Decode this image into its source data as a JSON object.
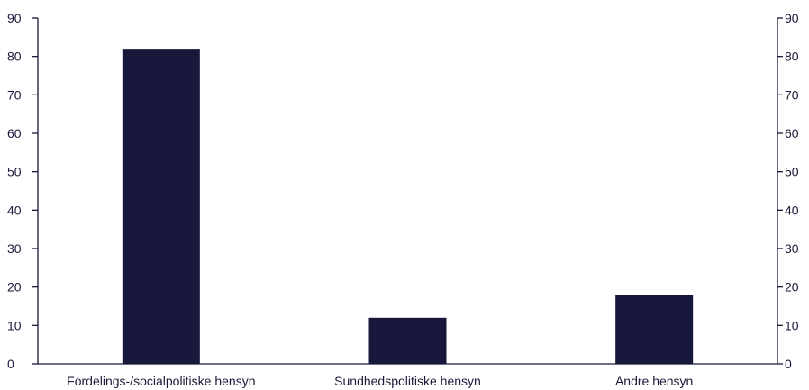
{
  "chart_data": {
    "type": "bar",
    "categories": [
      "Fordelings-/socialpolitiske hensyn",
      "Sundhedspolitiske hensyn",
      "Andre hensyn"
    ],
    "values": [
      82,
      12,
      18
    ],
    "title": "",
    "xlabel": "",
    "ylabel": "",
    "ylim": [
      0,
      90
    ],
    "yticks": [
      0,
      10,
      20,
      30,
      40,
      50,
      60,
      70,
      80,
      90
    ],
    "secondary_axis": true,
    "grid": false,
    "bar_color": "#17183b",
    "axis_color": "#17183b"
  }
}
